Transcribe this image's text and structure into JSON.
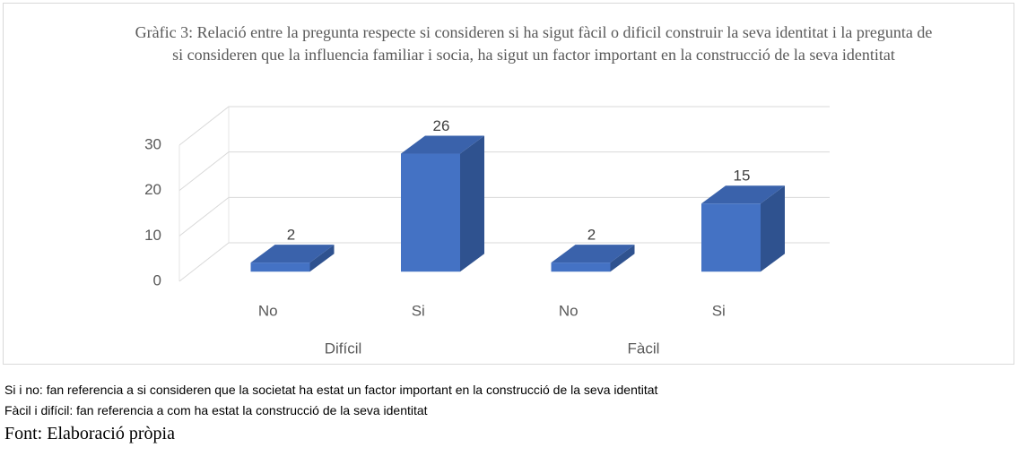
{
  "chart_data": {
    "type": "bar3d",
    "title": "Gràfic 3: Relació entre la pregunta respecte si consideren si ha sigut fàcil o dificil construir la seva identitat i la pregunta de si consideren que la influencia familiar i socia, ha sigut un factor important en la construcció de la seva identitat",
    "categories": [
      "No",
      "Si",
      "No",
      "Si"
    ],
    "groups": [
      "Difícil",
      "Fàcil"
    ],
    "values": [
      2,
      26,
      2,
      15
    ],
    "color": "#4472c4",
    "ylim": [
      0,
      30
    ],
    "yticks": [
      0,
      10,
      20,
      30
    ],
    "grid": true
  },
  "notes": [
    "Si i no: fan referencia a si consideren que la societat ha estat un factor important en la construcció de la seva identitat",
    "Fàcil i difícil: fan referencia a com ha estat la construcció de la seva identitat"
  ],
  "source": "Font: Elaboració pròpia"
}
